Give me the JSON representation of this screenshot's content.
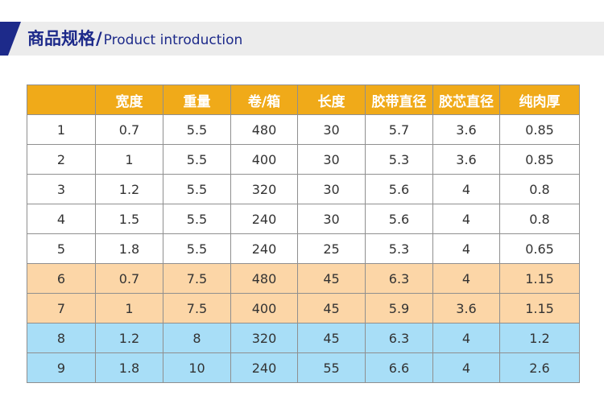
{
  "header": {
    "title_zh": "商品规格",
    "slash": "/",
    "title_en": "Product introduction",
    "accent_color": "#1d2a8a",
    "banner_bg": "#ececec"
  },
  "table": {
    "columns": [
      "",
      "宽度",
      "重量",
      "卷/箱",
      "长度",
      "胶带直径",
      "胶芯直径",
      "纯肉厚"
    ],
    "header_color": "#f0aa19",
    "row_colors": {
      "white": "#ffffff",
      "peach": "#fcd6a7",
      "blue": "#a8def7"
    },
    "rows": [
      {
        "group": "white",
        "cells": [
          "1",
          "0.7",
          "5.5",
          "480",
          "30",
          "5.7",
          "3.6",
          "0.85"
        ]
      },
      {
        "group": "white",
        "cells": [
          "2",
          "1",
          "5.5",
          "400",
          "30",
          "5.3",
          "3.6",
          "0.85"
        ]
      },
      {
        "group": "white",
        "cells": [
          "3",
          "1.2",
          "5.5",
          "320",
          "30",
          "5.6",
          "4",
          "0.8"
        ]
      },
      {
        "group": "white",
        "cells": [
          "4",
          "1.5",
          "5.5",
          "240",
          "30",
          "5.6",
          "4",
          "0.8"
        ]
      },
      {
        "group": "white",
        "cells": [
          "5",
          "1.8",
          "5.5",
          "240",
          "25",
          "5.3",
          "4",
          "0.65"
        ]
      },
      {
        "group": "peach",
        "cells": [
          "6",
          "0.7",
          "7.5",
          "480",
          "45",
          "6.3",
          "4",
          "1.15"
        ]
      },
      {
        "group": "peach",
        "cells": [
          "7",
          "1",
          "7.5",
          "400",
          "45",
          "5.9",
          "3.6",
          "1.15"
        ]
      },
      {
        "group": "blue",
        "cells": [
          "8",
          "1.2",
          "8",
          "320",
          "45",
          "6.3",
          "4",
          "1.2"
        ]
      },
      {
        "group": "blue",
        "cells": [
          "9",
          "1.8",
          "10",
          "240",
          "55",
          "6.6",
          "4",
          "2.6"
        ]
      }
    ]
  }
}
